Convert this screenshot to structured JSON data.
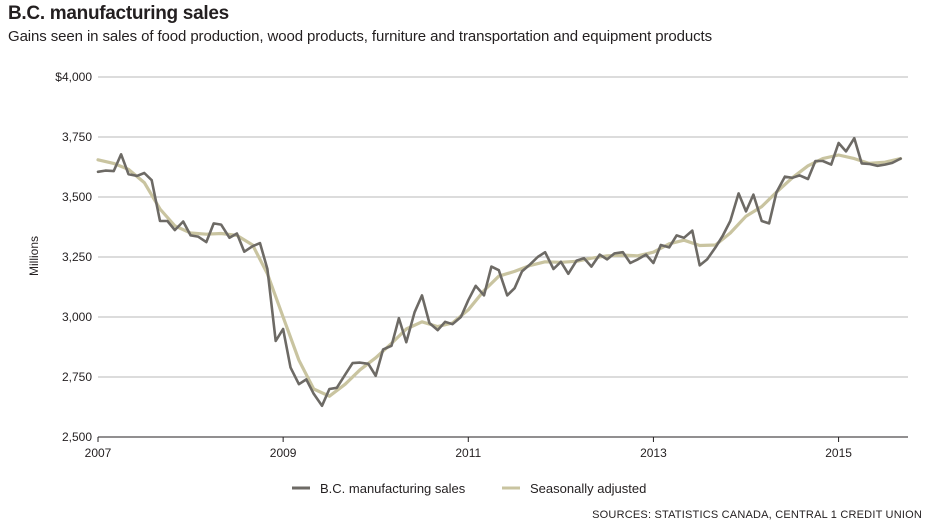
{
  "chart_data": {
    "type": "line",
    "title": "B.C. manufacturing sales",
    "subtitle": "Gains seen in sales of food production, wood products, furniture and transportation and equipment products",
    "ylabel": "Millions",
    "xlabel": "",
    "ylim": [
      2500,
      4000
    ],
    "xlim": [
      2007.0,
      2015.75
    ],
    "grid": true,
    "legend_position": "bottom-center",
    "y_ticks": [
      {
        "value": 4000,
        "label": "$4,000"
      },
      {
        "value": 3750,
        "label": "3,750"
      },
      {
        "value": 3500,
        "label": "3,500"
      },
      {
        "value": 3250,
        "label": "3,250"
      },
      {
        "value": 3000,
        "label": "3,000"
      },
      {
        "value": 2750,
        "label": "2,750"
      },
      {
        "value": 2500,
        "label": "2,500"
      }
    ],
    "x_ticks": [
      {
        "value": 2007,
        "label": "2007"
      },
      {
        "value": 2009,
        "label": "2009"
      },
      {
        "value": 2011,
        "label": "2011"
      },
      {
        "value": 2013,
        "label": "2013"
      },
      {
        "value": 2015,
        "label": "2015"
      }
    ],
    "series": [
      {
        "name": "B.C. manufacturing sales",
        "color": "#6d6a65",
        "points": [
          [
            2007.0,
            3605
          ],
          [
            2007.08,
            3610
          ],
          [
            2007.17,
            3608
          ],
          [
            2007.25,
            3678
          ],
          [
            2007.33,
            3595
          ],
          [
            2007.42,
            3588
          ],
          [
            2007.5,
            3600
          ],
          [
            2007.58,
            3570
          ],
          [
            2007.67,
            3400
          ],
          [
            2007.75,
            3400
          ],
          [
            2007.83,
            3362
          ],
          [
            2007.92,
            3398
          ],
          [
            2008.0,
            3340
          ],
          [
            2008.08,
            3335
          ],
          [
            2008.17,
            3312
          ],
          [
            2008.25,
            3390
          ],
          [
            2008.33,
            3385
          ],
          [
            2008.42,
            3330
          ],
          [
            2008.5,
            3348
          ],
          [
            2008.58,
            3272
          ],
          [
            2008.67,
            3295
          ],
          [
            2008.75,
            3308
          ],
          [
            2008.83,
            3200
          ],
          [
            2008.92,
            2900
          ],
          [
            2009.0,
            2950
          ],
          [
            2009.08,
            2790
          ],
          [
            2009.17,
            2720
          ],
          [
            2009.25,
            2740
          ],
          [
            2009.33,
            2680
          ],
          [
            2009.42,
            2630
          ],
          [
            2009.5,
            2700
          ],
          [
            2009.58,
            2705
          ],
          [
            2009.67,
            2760
          ],
          [
            2009.75,
            2808
          ],
          [
            2009.83,
            2810
          ],
          [
            2009.92,
            2805
          ],
          [
            2010.0,
            2755
          ],
          [
            2010.08,
            2865
          ],
          [
            2010.17,
            2880
          ],
          [
            2010.25,
            2995
          ],
          [
            2010.33,
            2895
          ],
          [
            2010.42,
            3020
          ],
          [
            2010.5,
            3090
          ],
          [
            2010.58,
            2975
          ],
          [
            2010.67,
            2945
          ],
          [
            2010.75,
            2980
          ],
          [
            2010.83,
            2970
          ],
          [
            2010.92,
            3000
          ],
          [
            2011.0,
            3070
          ],
          [
            2011.08,
            3130
          ],
          [
            2011.17,
            3090
          ],
          [
            2011.25,
            3210
          ],
          [
            2011.33,
            3195
          ],
          [
            2011.42,
            3090
          ],
          [
            2011.5,
            3120
          ],
          [
            2011.58,
            3190
          ],
          [
            2011.67,
            3220
          ],
          [
            2011.75,
            3250
          ],
          [
            2011.83,
            3270
          ],
          [
            2011.92,
            3200
          ],
          [
            2012.0,
            3230
          ],
          [
            2012.08,
            3180
          ],
          [
            2012.17,
            3235
          ],
          [
            2012.25,
            3245
          ],
          [
            2012.33,
            3210
          ],
          [
            2012.42,
            3260
          ],
          [
            2012.5,
            3240
          ],
          [
            2012.58,
            3265
          ],
          [
            2012.67,
            3270
          ],
          [
            2012.75,
            3225
          ],
          [
            2012.83,
            3240
          ],
          [
            2012.92,
            3260
          ],
          [
            2013.0,
            3225
          ],
          [
            2013.08,
            3300
          ],
          [
            2013.17,
            3290
          ],
          [
            2013.25,
            3340
          ],
          [
            2013.33,
            3330
          ],
          [
            2013.42,
            3360
          ],
          [
            2013.5,
            3215
          ],
          [
            2013.58,
            3240
          ],
          [
            2013.67,
            3290
          ],
          [
            2013.75,
            3340
          ],
          [
            2013.83,
            3400
          ],
          [
            2013.92,
            3515
          ],
          [
            2014.0,
            3440
          ],
          [
            2014.08,
            3510
          ],
          [
            2014.17,
            3400
          ],
          [
            2014.25,
            3390
          ],
          [
            2014.33,
            3520
          ],
          [
            2014.42,
            3585
          ],
          [
            2014.5,
            3580
          ],
          [
            2014.58,
            3590
          ],
          [
            2014.67,
            3575
          ],
          [
            2014.75,
            3650
          ],
          [
            2014.83,
            3650
          ],
          [
            2014.92,
            3635
          ],
          [
            2015.0,
            3725
          ],
          [
            2015.08,
            3690
          ],
          [
            2015.17,
            3745
          ],
          [
            2015.25,
            3640
          ],
          [
            2015.33,
            3638
          ],
          [
            2015.42,
            3630
          ],
          [
            2015.5,
            3635
          ],
          [
            2015.58,
            3642
          ],
          [
            2015.67,
            3660
          ]
        ]
      },
      {
        "name": "Seasonally adjusted",
        "color": "#c9c4a0",
        "points": [
          [
            2007.0,
            3655
          ],
          [
            2007.17,
            3640
          ],
          [
            2007.33,
            3615
          ],
          [
            2007.5,
            3560
          ],
          [
            2007.67,
            3450
          ],
          [
            2007.83,
            3380
          ],
          [
            2008.0,
            3350
          ],
          [
            2008.17,
            3345
          ],
          [
            2008.33,
            3348
          ],
          [
            2008.5,
            3340
          ],
          [
            2008.67,
            3300
          ],
          [
            2008.83,
            3180
          ],
          [
            2009.0,
            3000
          ],
          [
            2009.17,
            2820
          ],
          [
            2009.33,
            2700
          ],
          [
            2009.5,
            2670
          ],
          [
            2009.67,
            2720
          ],
          [
            2009.83,
            2780
          ],
          [
            2010.0,
            2830
          ],
          [
            2010.17,
            2890
          ],
          [
            2010.33,
            2950
          ],
          [
            2010.5,
            2980
          ],
          [
            2010.67,
            2960
          ],
          [
            2010.83,
            2975
          ],
          [
            2011.0,
            3030
          ],
          [
            2011.17,
            3110
          ],
          [
            2011.33,
            3170
          ],
          [
            2011.5,
            3190
          ],
          [
            2011.67,
            3215
          ],
          [
            2011.83,
            3230
          ],
          [
            2012.0,
            3228
          ],
          [
            2012.17,
            3232
          ],
          [
            2012.33,
            3245
          ],
          [
            2012.5,
            3255
          ],
          [
            2012.67,
            3258
          ],
          [
            2012.83,
            3255
          ],
          [
            2013.0,
            3270
          ],
          [
            2013.17,
            3305
          ],
          [
            2013.33,
            3320
          ],
          [
            2013.5,
            3298
          ],
          [
            2013.67,
            3300
          ],
          [
            2013.83,
            3350
          ],
          [
            2014.0,
            3420
          ],
          [
            2014.17,
            3460
          ],
          [
            2014.33,
            3520
          ],
          [
            2014.5,
            3580
          ],
          [
            2014.67,
            3630
          ],
          [
            2014.83,
            3660
          ],
          [
            2015.0,
            3675
          ],
          [
            2015.17,
            3660
          ],
          [
            2015.33,
            3640
          ],
          [
            2015.5,
            3645
          ],
          [
            2015.67,
            3660
          ]
        ]
      }
    ],
    "source": "SOURCES: STATISTICS CANADA, CENTRAL 1 CREDIT UNION"
  }
}
